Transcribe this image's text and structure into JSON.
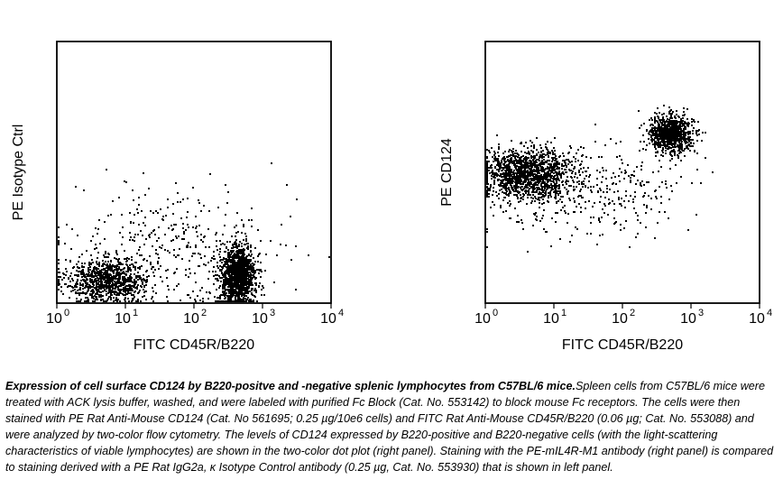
{
  "chart_data": [
    {
      "type": "scatter",
      "panel": "left",
      "xlabel": "FITC CD45R/B220",
      "ylabel": "PE Isotype Ctrl",
      "xscale": "log",
      "yscale": "log",
      "xlim": [
        1,
        10000
      ],
      "ylim": [
        1,
        10000
      ],
      "xticks": [
        "10",
        "10",
        "10",
        "10",
        "10"
      ],
      "xtick_exponents": [
        "0",
        "1",
        "2",
        "3",
        "4"
      ],
      "populations": [
        {
          "x": 5.5,
          "y": 2.3,
          "share": 0.36
        },
        {
          "x": 420,
          "y": 2.6,
          "share": 0.5
        },
        {
          "x": 50,
          "y": 8,
          "share": 0.14
        }
      ]
    },
    {
      "type": "scatter",
      "panel": "right",
      "xlabel": "FITC CD45R/B220",
      "ylabel": "PE CD124",
      "xscale": "log",
      "yscale": "log",
      "xlim": [
        1,
        10000
      ],
      "ylim": [
        1,
        10000
      ],
      "xticks": [
        "10",
        "10",
        "10",
        "10",
        "10"
      ],
      "xtick_exponents": [
        "0",
        "1",
        "2",
        "3",
        "4"
      ],
      "populations": [
        {
          "x": 4,
          "y": 100,
          "share": 0.52
        },
        {
          "x": 500,
          "y": 400,
          "share": 0.33
        },
        {
          "x": 30,
          "y": 50,
          "share": 0.15
        }
      ]
    }
  ],
  "caption": {
    "title": "Expression of cell surface CD124 by B220-positve and -negative splenic lymphocytes from C57BL/6 mice.",
    "body": "Spleen cells from C57BL/6 mice were treated with ACK lysis buffer, washed, and were labeled with purified Fc Block (Cat. No. 553142) to block mouse Fc receptors. The cells were then stained with PE Rat Anti-Mouse CD124 (Cat. No 561695; 0.25 µg/10e6 cells) and FITC Rat Anti-Mouse CD45R/B220 (0.06 µg; Cat. No. 553088) and were analyzed by two-color flow cytometry. The levels of CD124 expressed by B220-positive and B220-negative cells (with the light-scattering characteristics of viable lymphocytes) are shown in the two-color dot plot (right panel). Staining with the PE-mIL4R-M1 antibody (right panel) is compared to staining derived with a PE Rat IgG2a, κ Isotype Control antibody (0.25 µg, Cat. No. 553930) that is shown in left panel."
  }
}
